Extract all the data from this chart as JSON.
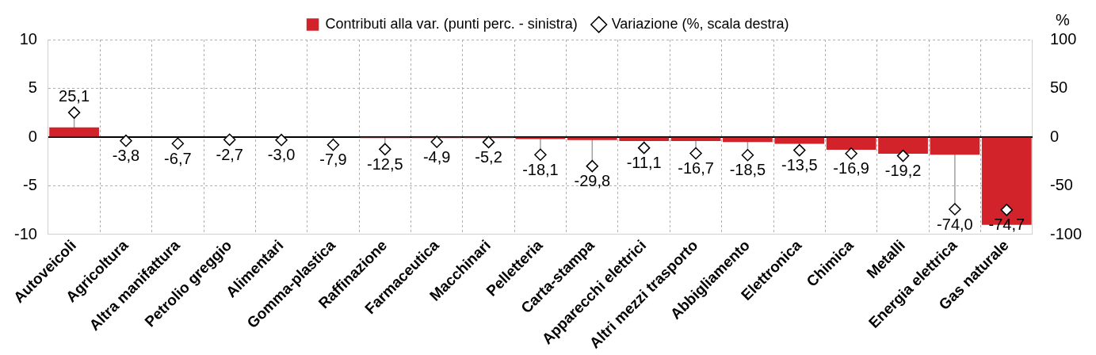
{
  "chart_data": {
    "type": "bar",
    "categories": [
      "Autoveicoli",
      "Agricoltura",
      "Altra manifattura",
      "Petrolio greggio",
      "Alimentari",
      "Gomma-plastica",
      "Raffinazione",
      "Farmaceutica",
      "Macchinari",
      "Pelletteria",
      "Carta-stampa",
      "Apparecchi elettrici",
      "Altri mezzi trasporto",
      "Abbigliamento",
      "Elettronica",
      "Chimica",
      "Metalli",
      "Energia elettrica",
      "Gas naturale"
    ],
    "series": [
      {
        "name": "Contributi alla var. (punti perc. - sinistra)",
        "color": "#d2232a",
        "values": [
          1.0,
          0.0,
          0.0,
          0.0,
          0.0,
          0.0,
          -0.1,
          -0.1,
          -0.1,
          -0.2,
          -0.3,
          -0.4,
          -0.4,
          -0.5,
          -0.7,
          -1.3,
          -1.7,
          -1.8,
          -9.0
        ]
      },
      {
        "name": "Variazione (%, scala destra)",
        "type": "scatter",
        "axis": "y2",
        "color": "#000000",
        "marker": "diamond",
        "values": [
          25.1,
          -3.8,
          -6.7,
          -2.7,
          -3.0,
          -7.9,
          -12.5,
          -4.9,
          -5.2,
          -18.1,
          -29.8,
          -11.1,
          -16.7,
          -18.5,
          -13.5,
          -16.9,
          -19.2,
          -74.0,
          -74.7
        ],
        "value_labels": [
          "25,1",
          "-3,8",
          "-6,7",
          "-2,7",
          "-3,0",
          "-7,9",
          "-12,5",
          "-4,9",
          "-5,2",
          "-18,1",
          "-29,8",
          "-11,1",
          "-16,7",
          "-18,5",
          "-13,5",
          "-16,9",
          "-19,2",
          "-74,0",
          "-74,7"
        ]
      }
    ],
    "ylim": [
      -10,
      10
    ],
    "yticks": [
      -10,
      -5,
      0,
      5,
      10
    ],
    "y2lim": [
      -100,
      100
    ],
    "y2ticks": [
      -100,
      -50,
      0,
      50,
      100
    ],
    "y2label": "%",
    "grid": true,
    "legend": "top"
  }
}
